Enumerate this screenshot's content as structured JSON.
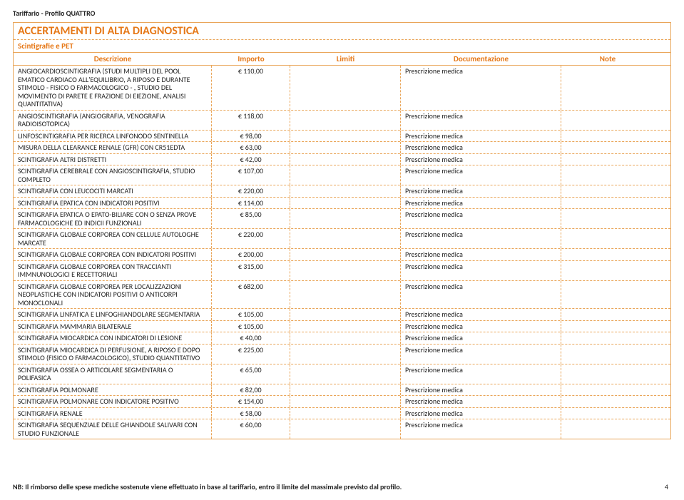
{
  "page_header": "Tariffario - Profilo QUATTRO",
  "section_title": "ACCERTAMENTI DI ALTA DIAGNOSTICA",
  "section_sub": "Scintigrafie e PET",
  "columns": {
    "desc": "Descrizione",
    "amount": "Importo",
    "limit": "Limiti",
    "doc": "Documentazione",
    "note": "Note"
  },
  "rows": [
    {
      "desc": "ANGIOCARDIOSCINTIGRAFIA (STUDI MULTIPLI DEL POOL EMATICO CARDIACO ALL'EQUILIBRIO, A RIPOSO E DURANTE STIMOLO - FISICO O FARMACOLOGICO - , STUDIO DEL MOVIMENTO DI PARETE E FRAZIONE DI EIEZIONE, ANALISI QUANTITATIVA)",
      "amount": "€             110,00",
      "limit": "",
      "doc": "Prescrizione medica",
      "note": ""
    },
    {
      "desc": "ANGIOSCINTIGRAFIA (ANGIOGRAFIA, VENOGRAFIA RADIOISOTOPICA)",
      "amount": "€             118,00",
      "limit": "",
      "doc": "Prescrizione medica",
      "note": ""
    },
    {
      "desc": "LINFOSCINTIGRAFIA PER RICERCA LINFONODO SENTINELLA",
      "amount": "€               98,00",
      "limit": "",
      "doc": "Prescrizione medica",
      "note": ""
    },
    {
      "desc": "MISURA DELLA CLEARANCE RENALE (GFR) CON CR51EDTA",
      "amount": "€               63,00",
      "limit": "",
      "doc": "Prescrizione medica",
      "note": ""
    },
    {
      "desc": "SCINTIGRAFIA ALTRI DISTRETTI",
      "amount": "€               42,00",
      "limit": "",
      "doc": "Prescrizione medica",
      "note": ""
    },
    {
      "desc": "SCINTIGRAFIA CEREBRALE CON ANGIOSCINTIGRAFIA, STUDIO COMPLETO",
      "amount": "€             107,00",
      "limit": "",
      "doc": "Prescrizione medica",
      "note": ""
    },
    {
      "desc": "SCINTIGRAFIA CON LEUCOCITI MARCATI",
      "amount": "€             220,00",
      "limit": "",
      "doc": "Prescrizione medica",
      "note": ""
    },
    {
      "desc": "SCINTIGRAFIA EPATICA CON INDICATORI POSITIVI",
      "amount": "€             114,00",
      "limit": "",
      "doc": "Prescrizione medica",
      "note": ""
    },
    {
      "desc": "SCINTIGRAFIA EPATICA O EPATO-BILIARE CON O SENZA PROVE FARMACOLOGICHE ED INDICII FUNZIONALI",
      "amount": "€               85,00",
      "limit": "",
      "doc": "Prescrizione medica",
      "note": ""
    },
    {
      "desc": "SCINTIGRAFIA GLOBALE CORPOREA CON CELLULE AUTOLOGHE MARCATE",
      "amount": "€             220,00",
      "limit": "",
      "doc": "Prescrizione medica",
      "note": ""
    },
    {
      "desc": "SCINTIGRAFIA GLOBALE CORPOREA CON INDICATORI POSITIVI",
      "amount": "€             200,00",
      "limit": "",
      "doc": "Prescrizione medica",
      "note": ""
    },
    {
      "desc": "SCINTIGRAFIA GLOBALE CORPOREA CON TRACCIANTI IMMNUNOLOGICI E RECETTORIALI",
      "amount": "€             315,00",
      "limit": "",
      "doc": "Prescrizione medica",
      "note": ""
    },
    {
      "desc": "SCINTIGRAFIA GLOBALE CORPOREA PER LOCALIZZAZIONI NEOPLASTICHE CON INDICATORI POSITIVI O ANTICORPI MONOCLONALI",
      "amount": "€             682,00",
      "limit": "",
      "doc": "Prescrizione medica",
      "note": ""
    },
    {
      "desc": "SCINTIGRAFIA LINFATICA E LINFOGHIANDOLARE SEGMENTARIA",
      "amount": "€             105,00",
      "limit": "",
      "doc": "Prescrizione medica",
      "note": ""
    },
    {
      "desc": "SCINTIGRAFIA MAMMARIA BILATERALE",
      "amount": "€             105,00",
      "limit": "",
      "doc": "Prescrizione medica",
      "note": ""
    },
    {
      "desc": "SCINTIGRAFIA MIOCARDICA CON INDICATORI DI LESIONE",
      "amount": "€               40,00",
      "limit": "",
      "doc": "Prescrizione medica",
      "note": ""
    },
    {
      "desc": "SCINTIGRAFIA MIOCARDICA DI PERFUSIONE, A RIPOSO E DOPO STIMOLO (FISICO O FARMACOLOGICO), STUDIO QUANTITATIVO",
      "amount": "€             225,00",
      "limit": "",
      "doc": "Prescrizione medica",
      "note": ""
    },
    {
      "desc": "SCINTIGRAFIA OSSEA O ARTICOLARE SEGMENTARIA O POLIFASICA",
      "amount": "€               65,00",
      "limit": "",
      "doc": "Prescrizione medica",
      "note": ""
    },
    {
      "desc": "SCINTIGRAFIA POLMONARE",
      "amount": "€               82,00",
      "limit": "",
      "doc": "Prescrizione medica",
      "note": ""
    },
    {
      "desc": "SCINTIGRAFIA POLMONARE CON INDICATORE POSITIVO",
      "amount": "€             154,00",
      "limit": "",
      "doc": "Prescrizione medica",
      "note": ""
    },
    {
      "desc": "SCINTIGRAFIA RENALE",
      "amount": "€               58,00",
      "limit": "",
      "doc": "Prescrizione medica",
      "note": ""
    },
    {
      "desc": "SCINTIGRAFIA SEQUENZIALE DELLE GHIANDOLE SALIVARI CON STUDIO FUNZIONALE",
      "amount": "€               60,00",
      "limit": "",
      "doc": "Prescrizione medica",
      "note": ""
    }
  ],
  "footer_note": "NB: Il rimborso delle spese mediche sostenute viene effettuato in base al tariffario, entro il limite del massimale previsto dal profilo.",
  "page_number": "4"
}
